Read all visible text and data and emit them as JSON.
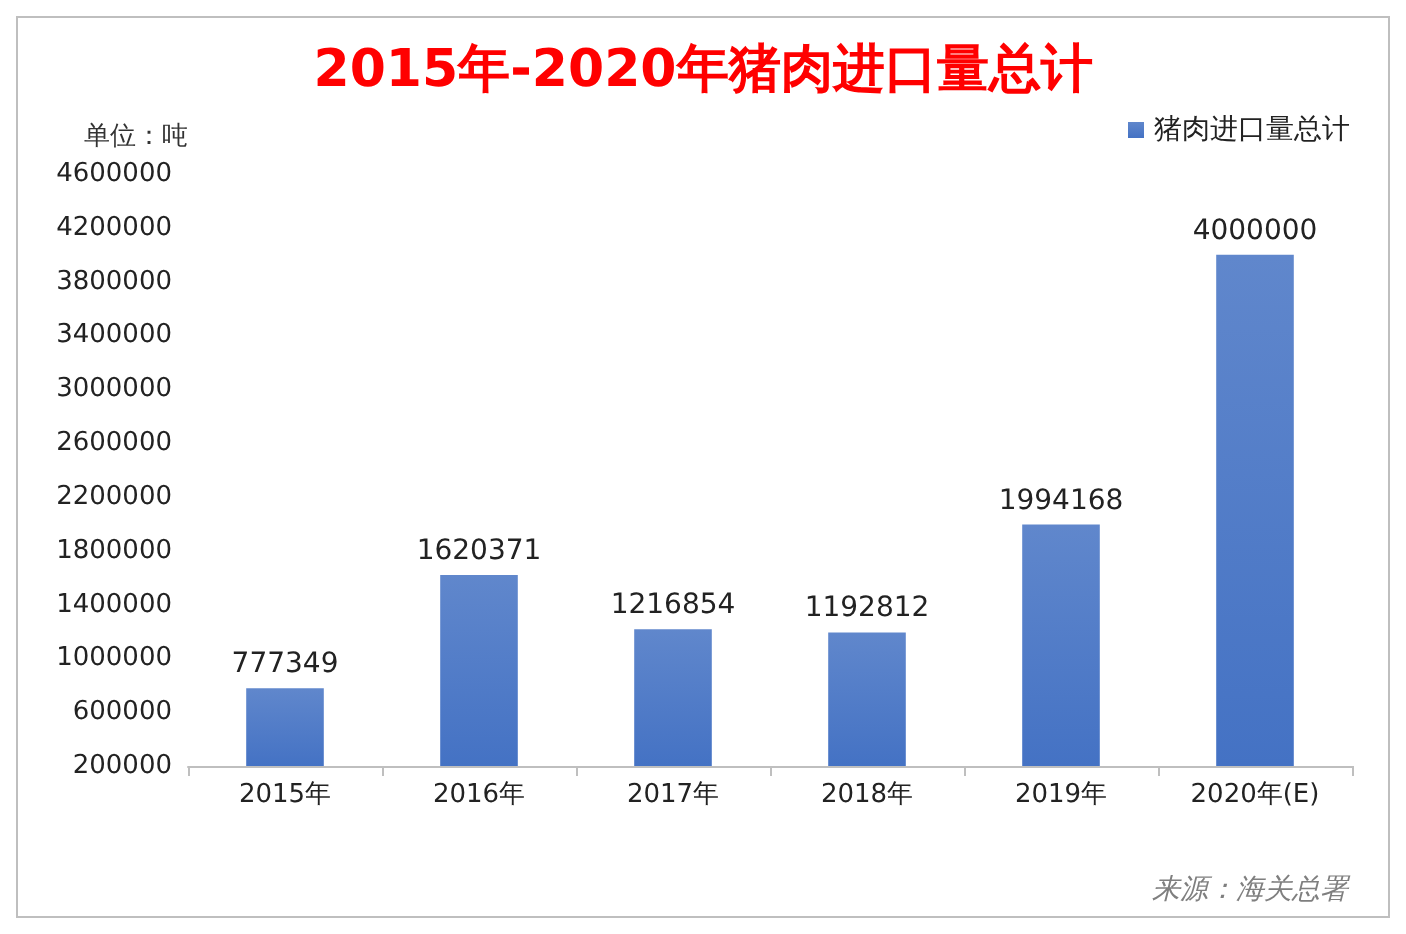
{
  "chart_data": {
    "type": "bar",
    "title": "2015年-2020年猪肉进口量总计",
    "ylabel": "单位：吨",
    "categories": [
      "2015年",
      "2016年",
      "2017年",
      "2018年",
      "2019年",
      "2020年(E)"
    ],
    "series": [
      {
        "name": "猪肉进口量总计",
        "color": "#4472c4",
        "values": [
          777349,
          1620371,
          1216854,
          1192812,
          1994168,
          4000000
        ]
      }
    ],
    "ylim": [
      200000,
      4600000
    ],
    "yticks": [
      200000,
      600000,
      1000000,
      1400000,
      1800000,
      2200000,
      2600000,
      3000000,
      3400000,
      3800000,
      4200000,
      4600000
    ],
    "grid": false,
    "legend": "top right",
    "data_labels": true,
    "annotations": [
      "来源：海关总署"
    ]
  }
}
